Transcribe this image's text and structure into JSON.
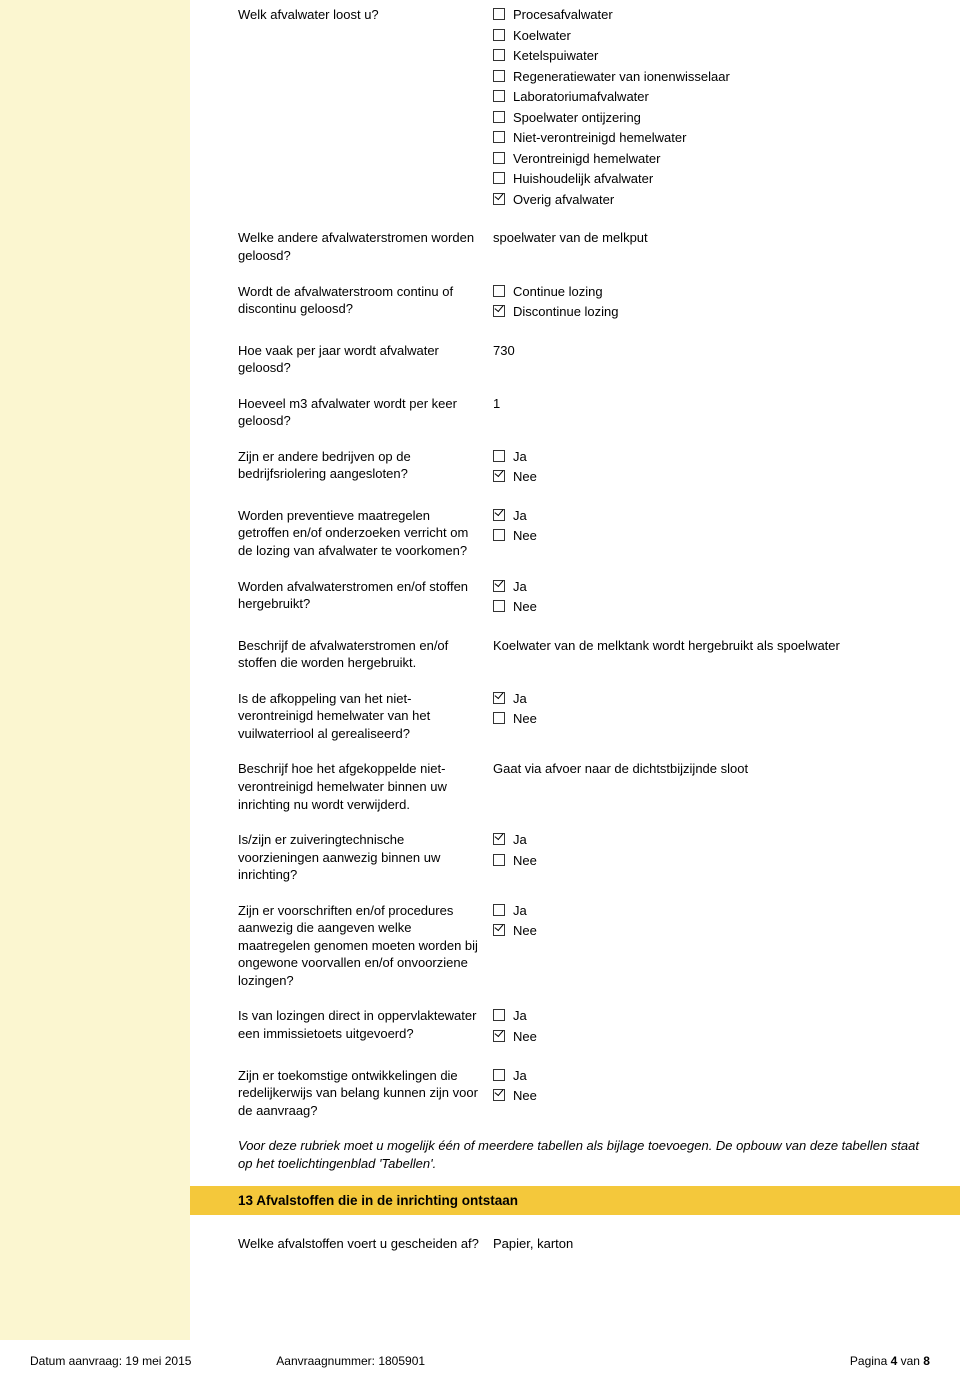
{
  "q_afvalwater_loost": {
    "question": "Welk afvalwater loost u?",
    "options": [
      {
        "label": "Procesafvalwater",
        "checked": false
      },
      {
        "label": "Koelwater",
        "checked": false
      },
      {
        "label": "Ketelspuiwater",
        "checked": false
      },
      {
        "label": "Regeneratiewater van ionenwisselaar",
        "checked": false
      },
      {
        "label": "Laboratoriumafvalwater",
        "checked": false
      },
      {
        "label": "Spoelwater ontijzering",
        "checked": false
      },
      {
        "label": "Niet-verontreinigd hemelwater",
        "checked": false
      },
      {
        "label": "Verontreinigd hemelwater",
        "checked": false
      },
      {
        "label": "Huishoudelijk afvalwater",
        "checked": false
      },
      {
        "label": "Overig afvalwater",
        "checked": true
      }
    ]
  },
  "q_andere_stromen": {
    "question": "Welke andere afvalwaterstromen worden geloosd?",
    "answer": "spoelwater van de melkput"
  },
  "q_continu": {
    "question": "Wordt de afvalwaterstroom continu of discontinu geloosd?",
    "options": [
      {
        "label": "Continue lozing",
        "checked": false
      },
      {
        "label": "Discontinue lozing",
        "checked": true
      }
    ]
  },
  "q_hoe_vaak": {
    "question": "Hoe vaak per jaar wordt afvalwater geloosd?",
    "answer": "730"
  },
  "q_hoeveel_m3": {
    "question": "Hoeveel m3 afvalwater wordt per keer geloosd?",
    "answer": "1"
  },
  "q_andere_bedrijven": {
    "question": "Zijn er andere bedrijven op de bedrijfsriolering aangesloten?",
    "options": [
      {
        "label": "Ja",
        "checked": false
      },
      {
        "label": "Nee",
        "checked": true
      }
    ]
  },
  "q_preventieve": {
    "question": "Worden preventieve maatregelen getroffen en/of onderzoeken verricht om de lozing van afvalwater te voorkomen?",
    "options": [
      {
        "label": "Ja",
        "checked": true
      },
      {
        "label": "Nee",
        "checked": false
      }
    ]
  },
  "q_hergebruikt": {
    "question": "Worden afvalwaterstromen en/of stoffen hergebruikt?",
    "options": [
      {
        "label": "Ja",
        "checked": true
      },
      {
        "label": "Nee",
        "checked": false
      }
    ]
  },
  "q_beschrijf_hergebruik": {
    "question": "Beschrijf de afvalwaterstromen en/of stoffen die worden hergebruikt.",
    "answer": "Koelwater van de melktank wordt hergebruikt als spoelwater"
  },
  "q_afkoppeling": {
    "question": "Is de afkoppeling van het niet-verontreinigd hemelwater van het vuilwaterriool al gerealiseerd?",
    "options": [
      {
        "label": "Ja",
        "checked": true
      },
      {
        "label": "Nee",
        "checked": false
      }
    ]
  },
  "q_beschrijf_afgekoppeld": {
    "question": "Beschrijf hoe het afgekoppelde niet-verontreinigd hemelwater binnen uw inrichting nu wordt verwijderd.",
    "answer": "Gaat via afvoer naar de dichtstbijzijnde sloot"
  },
  "q_zuivering": {
    "question": "Is/zijn er zuiveringtechnische voorzieningen aanwezig binnen uw inrichting?",
    "options": [
      {
        "label": "Ja",
        "checked": true
      },
      {
        "label": "Nee",
        "checked": false
      }
    ]
  },
  "q_voorschriften": {
    "question": "Zijn er voorschriften en/of procedures aanwezig die aangeven welke maatregelen genomen moeten worden bij ongewone voorvallen en/of onvoorziene lozingen?",
    "options": [
      {
        "label": "Ja",
        "checked": false
      },
      {
        "label": "Nee",
        "checked": true
      }
    ]
  },
  "q_immissietoets": {
    "question": "Is van lozingen direct in oppervlaktewater een immissietoets uitgevoerd?",
    "options": [
      {
        "label": "Ja",
        "checked": false
      },
      {
        "label": "Nee",
        "checked": true
      }
    ]
  },
  "q_toekomstige": {
    "question": "Zijn er toekomstige ontwikkelingen die redelijkerwijs van belang kunnen zijn voor de aanvraag?",
    "options": [
      {
        "label": "Ja",
        "checked": false
      },
      {
        "label": "Nee",
        "checked": true
      }
    ]
  },
  "rubriek_note": "Voor deze rubriek moet u mogelijk één of meerdere tabellen als bijlage toevoegen. De opbouw van deze tabellen staat op het toelichtingenblad 'Tabellen'.",
  "section13": {
    "title": "13 Afvalstoffen die in de inrichting ontstaan"
  },
  "q_afvalstoffen": {
    "question": "Welke afvalstoffen voert u gescheiden af?",
    "answer": "Papier, karton"
  },
  "footer": {
    "datum_label": "Datum aanvraag: ",
    "datum_value": "19 mei 2015",
    "aanvraag_label": "Aanvraagnummer: ",
    "aanvraag_value": "1805901",
    "page_prefix": "Pagina ",
    "page_num": "4",
    "page_mid": " van ",
    "page_total": "8"
  }
}
